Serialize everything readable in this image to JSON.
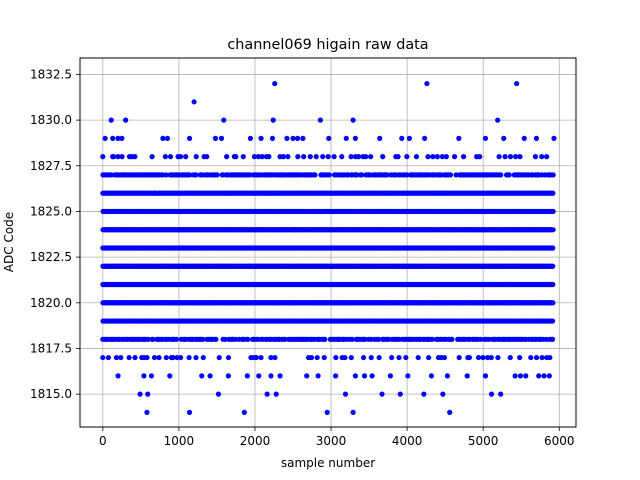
{
  "chart_data": {
    "type": "scatter",
    "title": "channel069 higain raw data",
    "xlabel": "sample number",
    "ylabel": "ADC Code",
    "xlim": [
      -300,
      6220
    ],
    "ylim": [
      1813.2,
      1833.4
    ],
    "x_ticks": [
      0,
      1000,
      2000,
      3000,
      4000,
      5000,
      6000
    ],
    "x_tick_labels": [
      "0",
      "1000",
      "2000",
      "3000",
      "4000",
      "5000",
      "6000"
    ],
    "y_ticks": [
      1815.0,
      1817.5,
      1820.0,
      1822.5,
      1825.0,
      1827.5,
      1830.0,
      1832.5
    ],
    "y_tick_labels": [
      "1815.0",
      "1817.5",
      "1820.0",
      "1822.5",
      "1825.0",
      "1827.5",
      "1830.0",
      "1832.5"
    ],
    "grid": true,
    "marker_color": "#0000ff",
    "sample_count": 5920,
    "levels": [
      {
        "y": 1820,
        "density": "dense"
      },
      {
        "y": 1821,
        "density": "dense"
      },
      {
        "y": 1822,
        "density": "dense"
      },
      {
        "y": 1823,
        "density": "dense"
      },
      {
        "y": 1824,
        "density": "dense"
      },
      {
        "y": 1825,
        "density": "dense"
      },
      {
        "y": 1826,
        "density": "dense"
      },
      {
        "y": 1819,
        "density": "dense"
      },
      {
        "y": 1827,
        "density": "medium"
      },
      {
        "y": 1818,
        "density": "medium"
      },
      {
        "y": 1828,
        "density": "sparse"
      },
      {
        "y": 1817,
        "density": "sparse"
      }
    ],
    "points": [
      [
        580,
        1814
      ],
      [
        1140,
        1814
      ],
      [
        1860,
        1814
      ],
      [
        2950,
        1814
      ],
      [
        3290,
        1814
      ],
      [
        4560,
        1814
      ],
      [
        490,
        1815
      ],
      [
        590,
        1815
      ],
      [
        1520,
        1815
      ],
      [
        2160,
        1815
      ],
      [
        2280,
        1815
      ],
      [
        3190,
        1815
      ],
      [
        3670,
        1815
      ],
      [
        3910,
        1815
      ],
      [
        4220,
        1815
      ],
      [
        4470,
        1815
      ],
      [
        5110,
        1815
      ],
      [
        5230,
        1815
      ],
      [
        200,
        1816
      ],
      [
        540,
        1816
      ],
      [
        640,
        1816
      ],
      [
        880,
        1816
      ],
      [
        1300,
        1816
      ],
      [
        1410,
        1816
      ],
      [
        1650,
        1816
      ],
      [
        1900,
        1816
      ],
      [
        2050,
        1816
      ],
      [
        2210,
        1816
      ],
      [
        2330,
        1816
      ],
      [
        2680,
        1816
      ],
      [
        2830,
        1816
      ],
      [
        3060,
        1816
      ],
      [
        3320,
        1816
      ],
      [
        3440,
        1816
      ],
      [
        3540,
        1816
      ],
      [
        3780,
        1816
      ],
      [
        4010,
        1816
      ],
      [
        4320,
        1816
      ],
      [
        4530,
        1816
      ],
      [
        4790,
        1816
      ],
      [
        5030,
        1816
      ],
      [
        5420,
        1816
      ],
      [
        5490,
        1816
      ],
      [
        5560,
        1816
      ],
      [
        5730,
        1816
      ],
      [
        5800,
        1816
      ],
      [
        5870,
        1816
      ],
      [
        110,
        1830
      ],
      [
        300,
        1830
      ],
      [
        1590,
        1830
      ],
      [
        2240,
        1830
      ],
      [
        2860,
        1830
      ],
      [
        3290,
        1830
      ],
      [
        5190,
        1830
      ],
      [
        30,
        1829
      ],
      [
        130,
        1829
      ],
      [
        200,
        1829
      ],
      [
        250,
        1829
      ],
      [
        790,
        1829
      ],
      [
        850,
        1829
      ],
      [
        1140,
        1829
      ],
      [
        1480,
        1829
      ],
      [
        1560,
        1829
      ],
      [
        1940,
        1829
      ],
      [
        2080,
        1829
      ],
      [
        2230,
        1829
      ],
      [
        2420,
        1829
      ],
      [
        2500,
        1829
      ],
      [
        2560,
        1829
      ],
      [
        2630,
        1829
      ],
      [
        2970,
        1829
      ],
      [
        3200,
        1829
      ],
      [
        3320,
        1829
      ],
      [
        3640,
        1829
      ],
      [
        3930,
        1829
      ],
      [
        4030,
        1829
      ],
      [
        4230,
        1829
      ],
      [
        4680,
        1829
      ],
      [
        5030,
        1829
      ],
      [
        5270,
        1829
      ],
      [
        5540,
        1829
      ],
      [
        5700,
        1829
      ],
      [
        5930,
        1829
      ],
      [
        1200,
        1831
      ],
      [
        2260,
        1832
      ],
      [
        4260,
        1832
      ],
      [
        5440,
        1832
      ]
    ]
  }
}
